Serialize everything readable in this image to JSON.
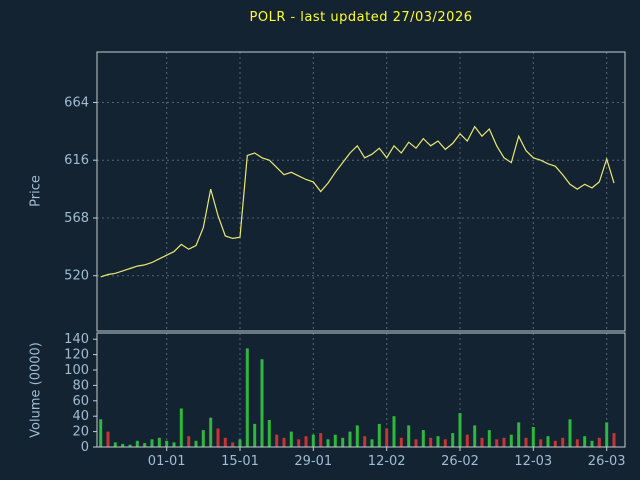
{
  "colors": {
    "background": "#132331",
    "title": "#ffff2e",
    "axis_label": "#9fbdd4",
    "grid": "#526678",
    "border": "#c2ccd4",
    "price_line": "#e8e873",
    "volume_up": "#2eb83e",
    "volume_down": "#c63434"
  },
  "chart_data": {
    "type": "line+bar",
    "title": "POLR - last updated 27/03/2026",
    "legend": "none",
    "grid": "dashed",
    "n_slots": 72,
    "x_ticks": [
      {
        "label": "01-01",
        "i": 9
      },
      {
        "label": "15-01",
        "i": 19
      },
      {
        "label": "29-01",
        "i": 29
      },
      {
        "label": "12-02",
        "i": 39
      },
      {
        "label": "26-02",
        "i": 49
      },
      {
        "label": "12-03",
        "i": 59
      },
      {
        "label": "26-03",
        "i": 69
      }
    ],
    "price": {
      "ylabel": "Price",
      "yticks": [
        520,
        568,
        616,
        664
      ],
      "ylim": [
        474,
        706
      ],
      "values": [
        519,
        521,
        522,
        524,
        526,
        528,
        529,
        531,
        534,
        537,
        540,
        546,
        542,
        545,
        560,
        592,
        570,
        553,
        551,
        552,
        620,
        622,
        618,
        616,
        610,
        604,
        606,
        603,
        600,
        598,
        590,
        597,
        606,
        614,
        622,
        628,
        618,
        621,
        626,
        618,
        628,
        622,
        631,
        626,
        634,
        628,
        632,
        625,
        630,
        638,
        632,
        644,
        636,
        642,
        628,
        618,
        614,
        636,
        624,
        618,
        616,
        613,
        611,
        604,
        596,
        592,
        596,
        593,
        598,
        617,
        597
      ]
    },
    "volume": {
      "ylabel": "Volume (0000)",
      "yticks": [
        0,
        20,
        40,
        60,
        80,
        100,
        120,
        140
      ],
      "ylim": [
        0,
        148
      ],
      "bars": [
        [
          36,
          "u"
        ],
        [
          20,
          "d"
        ],
        [
          6,
          "u"
        ],
        [
          4,
          "u"
        ],
        [
          3,
          "u"
        ],
        [
          8,
          "u"
        ],
        [
          5,
          "u"
        ],
        [
          10,
          "u"
        ],
        [
          12,
          "u"
        ],
        [
          8,
          "u"
        ],
        [
          6,
          "u"
        ],
        [
          50,
          "u"
        ],
        [
          14,
          "d"
        ],
        [
          8,
          "u"
        ],
        [
          22,
          "u"
        ],
        [
          38,
          "u"
        ],
        [
          24,
          "d"
        ],
        [
          12,
          "d"
        ],
        [
          6,
          "d"
        ],
        [
          10,
          "u"
        ],
        [
          128,
          "u"
        ],
        [
          30,
          "u"
        ],
        [
          114,
          "u"
        ],
        [
          35,
          "u"
        ],
        [
          16,
          "d"
        ],
        [
          12,
          "d"
        ],
        [
          20,
          "u"
        ],
        [
          10,
          "d"
        ],
        [
          14,
          "d"
        ],
        [
          16,
          "u"
        ],
        [
          18,
          "d"
        ],
        [
          10,
          "u"
        ],
        [
          16,
          "u"
        ],
        [
          12,
          "u"
        ],
        [
          20,
          "u"
        ],
        [
          28,
          "u"
        ],
        [
          14,
          "d"
        ],
        [
          10,
          "u"
        ],
        [
          30,
          "u"
        ],
        [
          24,
          "d"
        ],
        [
          40,
          "u"
        ],
        [
          12,
          "d"
        ],
        [
          28,
          "u"
        ],
        [
          10,
          "d"
        ],
        [
          22,
          "u"
        ],
        [
          12,
          "d"
        ],
        [
          14,
          "u"
        ],
        [
          10,
          "d"
        ],
        [
          18,
          "u"
        ],
        [
          44,
          "u"
        ],
        [
          16,
          "d"
        ],
        [
          28,
          "u"
        ],
        [
          12,
          "d"
        ],
        [
          22,
          "u"
        ],
        [
          10,
          "d"
        ],
        [
          12,
          "d"
        ],
        [
          16,
          "u"
        ],
        [
          32,
          "u"
        ],
        [
          12,
          "d"
        ],
        [
          26,
          "u"
        ],
        [
          10,
          "d"
        ],
        [
          14,
          "u"
        ],
        [
          8,
          "d"
        ],
        [
          12,
          "d"
        ],
        [
          36,
          "u"
        ],
        [
          10,
          "d"
        ],
        [
          14,
          "u"
        ],
        [
          8,
          "u"
        ],
        [
          12,
          "d"
        ],
        [
          32,
          "u"
        ],
        [
          18,
          "d"
        ]
      ]
    }
  }
}
